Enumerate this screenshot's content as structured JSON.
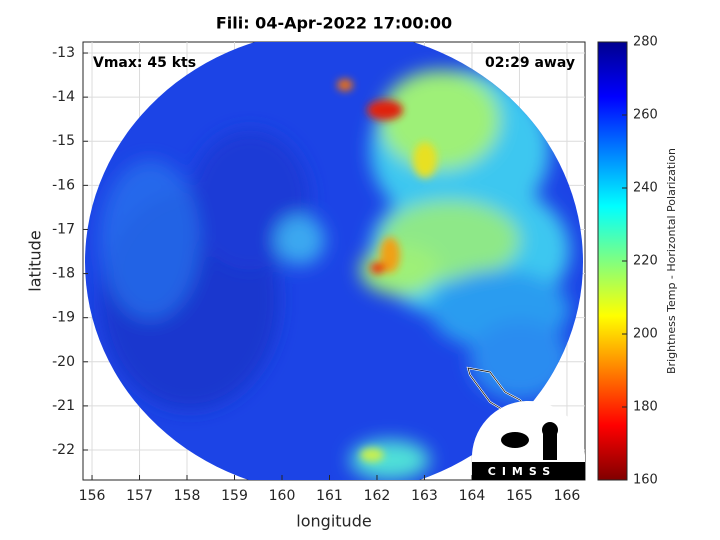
{
  "chart_data": {
    "type": "image",
    "title": "Fili: 04-Apr-2022 17:00:00",
    "xlabel": "longitude",
    "ylabel": "latitude",
    "xlim": [
      155.81,
      166.38
    ],
    "ylim": [
      -22.68,
      -12.75
    ],
    "xticks": [
      156,
      157,
      158,
      159,
      160,
      161,
      162,
      163,
      164,
      165,
      166
    ],
    "yticks": [
      -13,
      -14,
      -15,
      -16,
      -17,
      -18,
      -19,
      -20,
      -21,
      -22
    ],
    "grid": true,
    "annotations": [
      "Vmax: 45 kts",
      "02:29 away"
    ],
    "colormap": "jet",
    "clim": [
      160,
      280
    ],
    "colorbar_ticks": [
      160,
      180,
      200,
      220,
      240,
      260,
      280
    ],
    "colorbar_label": "Brightness Temp - Horizontal Polarization",
    "logo": "CIMSS"
  }
}
